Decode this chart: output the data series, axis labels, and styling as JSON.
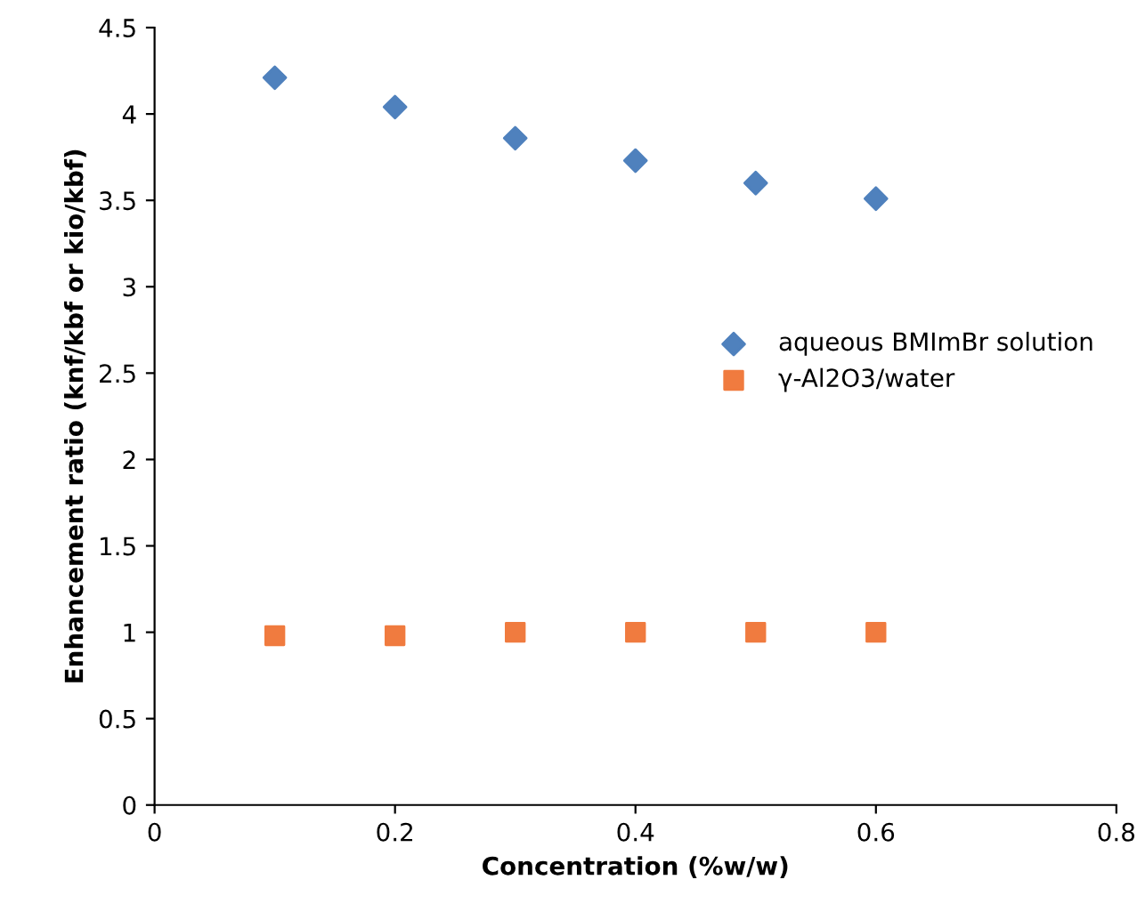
{
  "chart_data": {
    "type": "scatter",
    "xlabel": "Concentration (%w/w)",
    "ylabel": "Enhancement ratio (knf/kbf or kio/kbf)",
    "x": [
      0.1,
      0.2,
      0.3,
      0.4,
      0.5,
      0.6
    ],
    "series": [
      {
        "name": "aqueous BMImBr solution",
        "color": "#4f81bd",
        "marker": "diamond",
        "values": [
          4.21,
          4.04,
          3.86,
          3.73,
          3.6,
          3.51
        ]
      },
      {
        "name": "γ-Al2O3/water",
        "color": "#f07b3f",
        "marker": "square",
        "values": [
          0.98,
          0.98,
          1.0,
          1.0,
          1.0,
          1.0
        ]
      }
    ],
    "xlim": [
      0,
      0.8
    ],
    "xticks": [
      0,
      0.2,
      0.4,
      0.6,
      0.8
    ],
    "ylim": [
      0,
      4.5
    ],
    "yticks": [
      0,
      0.5,
      1,
      1.5,
      2,
      2.5,
      3,
      3.5,
      4,
      4.5
    ],
    "grid": false,
    "legend": "right"
  }
}
